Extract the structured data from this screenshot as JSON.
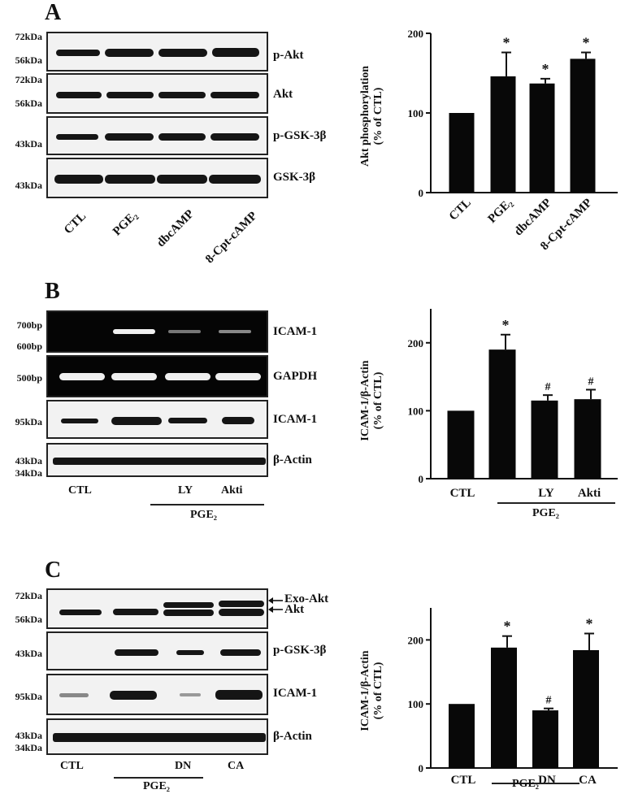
{
  "panels": [
    {
      "letter": "A",
      "blot_labels": [
        "p-Akt",
        "Akt",
        "p-GSK-3β",
        "GSK-3β"
      ],
      "markers": [
        "72kDa",
        "56kDa",
        "72kDa",
        "56kDa",
        "43kDa",
        "43kDa"
      ],
      "lanes": [
        "CTL",
        "PGE₂",
        "dbcAMP",
        "8-Cpt-cAMP"
      ]
    },
    {
      "letter": "B",
      "blot_labels": [
        "ICAM-1",
        "GAPDH",
        "ICAM-1",
        "β-Actin"
      ],
      "markers": [
        "700bp",
        "600bp",
        "500bp",
        "95kDa",
        "43kDa",
        "34kDa"
      ],
      "lanes": [
        "CTL",
        "LY",
        "Akti"
      ],
      "group_label": "PGE₂"
    },
    {
      "letter": "C",
      "blot_labels": [
        "Exo-Akt",
        "Akt",
        "p-GSK-3β",
        "ICAM-1",
        "β-Actin"
      ],
      "markers": [
        "72kDa",
        "56kDa",
        "43kDa",
        "95kDa",
        "43kDa",
        "34kDa"
      ],
      "lanes": [
        "CTL",
        "DN",
        "CA"
      ],
      "group_label": "PGE₂"
    }
  ],
  "chart_data": [
    {
      "type": "bar",
      "panel": "A",
      "categories": [
        "CTL",
        "PGE₂",
        "dbcAMP",
        "8-Cpt-cAMP"
      ],
      "values": [
        100,
        146,
        137,
        168
      ],
      "errors": [
        0,
        30,
        6,
        8
      ],
      "marks": [
        "",
        "*",
        "*",
        "*"
      ],
      "ylabel": "Akt phosphorylation\n(% of CTL)",
      "ylim": [
        0,
        200
      ],
      "yticks": [
        0,
        100,
        200
      ],
      "category_labels_rotated": true
    },
    {
      "type": "bar",
      "panel": "B",
      "categories": [
        "CTL",
        "PGE₂",
        "LY",
        "Akti"
      ],
      "category_labels": [
        "CTL",
        "",
        "LY",
        "Akti"
      ],
      "values": [
        100,
        190,
        115,
        117
      ],
      "errors": [
        0,
        22,
        8,
        14
      ],
      "marks": [
        "",
        "*",
        "#",
        "#"
      ],
      "ylabel": "ICAM-1/β-Actin\n(% of CTL)",
      "ylim": [
        0,
        250
      ],
      "yticks": [
        0,
        100,
        200
      ],
      "group_label": "PGE₂"
    },
    {
      "type": "bar",
      "panel": "C",
      "categories": [
        "CTL",
        "PGE₂",
        "DN",
        "CA"
      ],
      "category_labels": [
        "CTL",
        "",
        "DN",
        "CA"
      ],
      "values": [
        100,
        188,
        90,
        184
      ],
      "errors": [
        0,
        18,
        3,
        26
      ],
      "marks": [
        "",
        "*",
        "#",
        "*"
      ],
      "ylabel": "ICAM-1/β-Actin\n(% of CTL)",
      "ylim": [
        0,
        250
      ],
      "yticks": [
        0,
        100,
        200
      ],
      "group_label": "PGE₂"
    }
  ]
}
